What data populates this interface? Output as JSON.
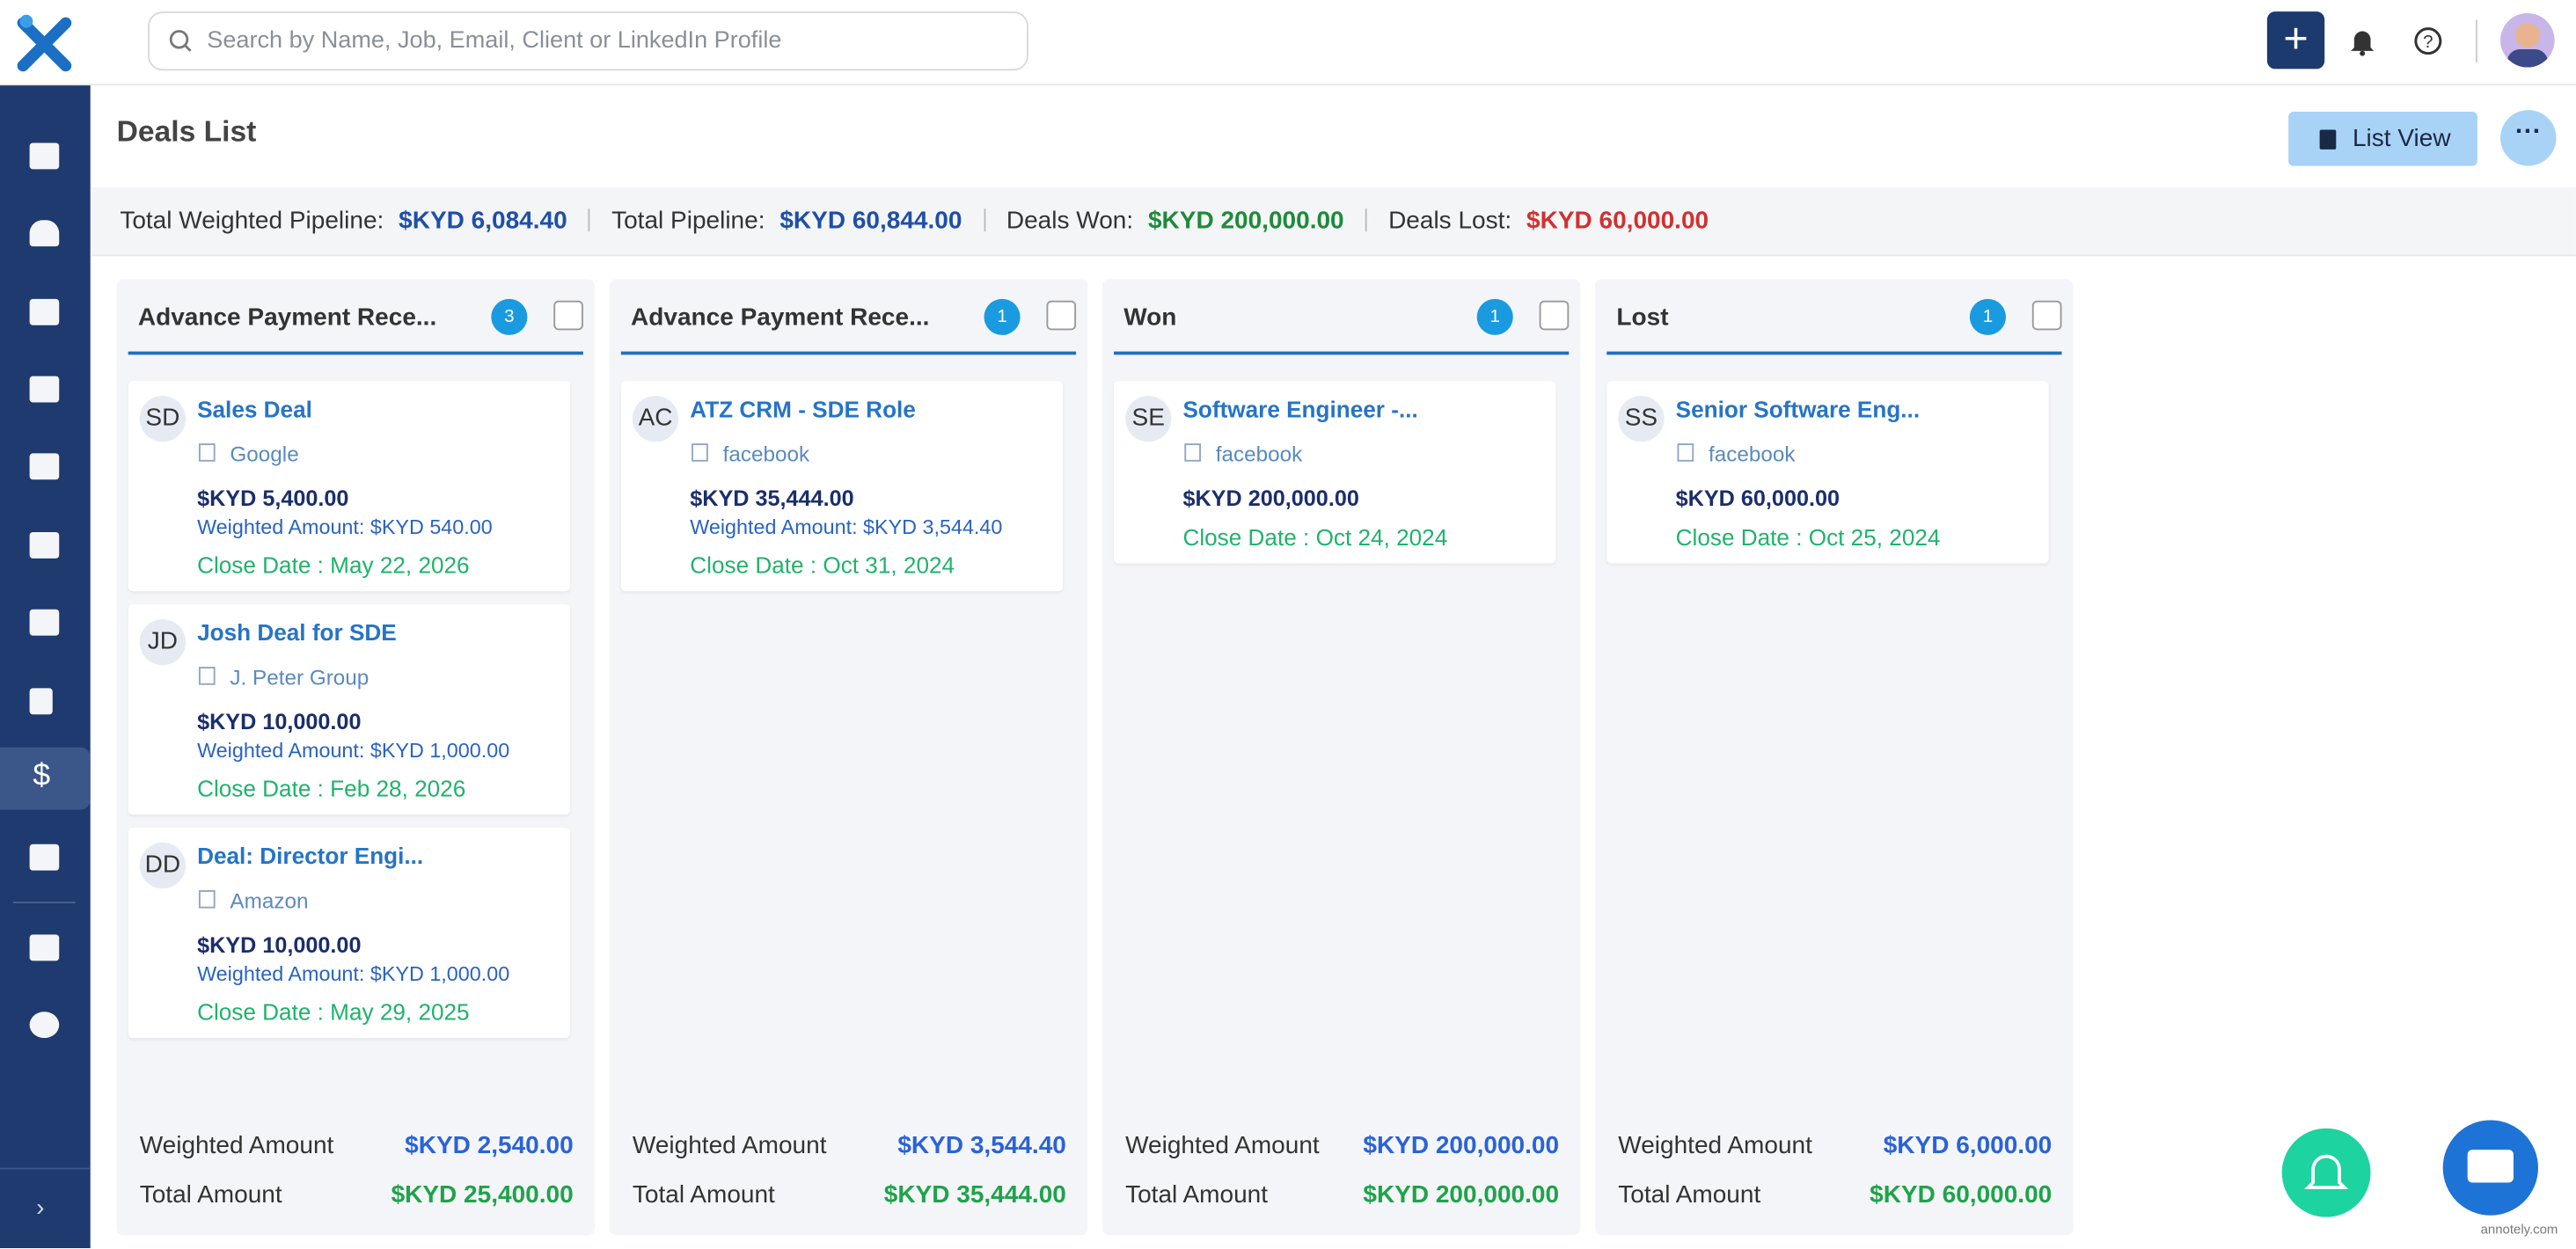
{
  "header": {
    "search_placeholder": "Search by Name, Job, Email, Client or LinkedIn Profile"
  },
  "page": {
    "title": "Deals List",
    "view_button": "List View"
  },
  "summary": [
    {
      "label": "Total Weighted Pipeline:",
      "value": "$KYD 6,084.40"
    },
    {
      "label": "Total Pipeline:",
      "value": "$KYD 60,844.00"
    },
    {
      "label": "Deals Won:",
      "value": "$KYD 200,000.00"
    },
    {
      "label": "Deals Lost:",
      "value": "$KYD 60,000.00"
    }
  ],
  "columns": [
    {
      "title": "Advance Payment Rece...",
      "count": 3,
      "cards": [
        {
          "initials": "SD",
          "name": "Sales Deal",
          "company": "Google",
          "amount": "$KYD 5,400.00",
          "weighted": "Weighted Amount: $KYD 540.00",
          "close_date": "Close Date : May 22, 2026"
        },
        {
          "initials": "JD",
          "name": "Josh Deal for SDE",
          "company": "J. Peter Group",
          "amount": "$KYD 10,000.00",
          "weighted": "Weighted Amount: $KYD 1,000.00",
          "close_date": "Close Date : Feb 28, 2026"
        },
        {
          "initials": "DD",
          "name": "Deal: Director Engi...",
          "company": "Amazon",
          "amount": "$KYD 10,000.00",
          "weighted": "Weighted Amount: $KYD 1,000.00",
          "close_date": "Close Date : May 29, 2025"
        }
      ],
      "footer": {
        "weighted_label": "Weighted Amount",
        "weighted_value": "$KYD 2,540.00",
        "total_label": "Total Amount",
        "total_value": "$KYD 25,400.00"
      }
    },
    {
      "title": "Advance Payment Rece...",
      "count": 1,
      "cards": [
        {
          "initials": "AC",
          "name": "ATZ CRM - SDE Role",
          "company": "facebook",
          "amount": "$KYD 35,444.00",
          "weighted": "Weighted Amount: $KYD 3,544.40",
          "close_date": "Close Date : Oct 31, 2024"
        }
      ],
      "footer": {
        "weighted_label": "Weighted Amount",
        "weighted_value": "$KYD 3,544.40",
        "total_label": "Total Amount",
        "total_value": "$KYD 35,444.00"
      }
    },
    {
      "title": "Won",
      "count": 1,
      "cards": [
        {
          "initials": "SE",
          "name": "Software Engineer -...",
          "company": "facebook",
          "amount": "$KYD 200,000.00",
          "close_date": "Close Date : Oct 24, 2024"
        }
      ],
      "footer": {
        "weighted_label": "Weighted Amount",
        "weighted_value": "$KYD 200,000.00",
        "total_label": "Total Amount",
        "total_value": "$KYD 200,000.00"
      }
    },
    {
      "title": "Lost",
      "count": 1,
      "cards": [
        {
          "initials": "SS",
          "name": "Senior Software Eng...",
          "company": "facebook",
          "amount": "$KYD 60,000.00",
          "close_date": "Close Date : Oct 25, 2024"
        }
      ],
      "footer": {
        "weighted_label": "Weighted Amount",
        "weighted_value": "$KYD 6,000.00",
        "total_label": "Total Amount",
        "total_value": "$KYD 60,000.00"
      }
    }
  ],
  "watermark": "annotely.com"
}
